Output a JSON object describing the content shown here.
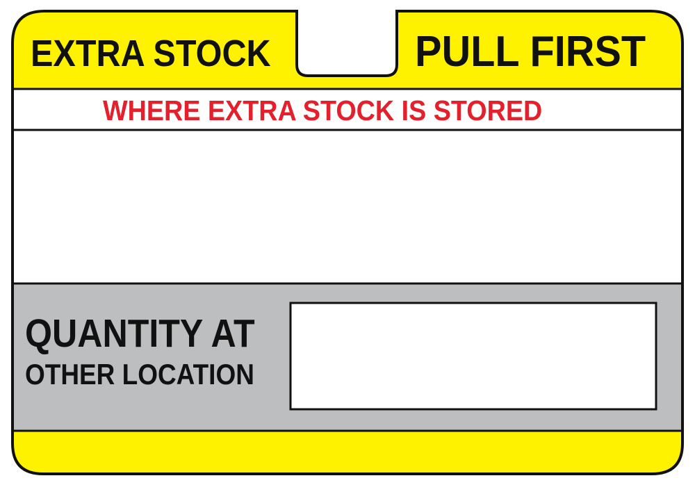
{
  "label": {
    "header_left": "EXTRA STOCK",
    "header_right": "PULL FIRST",
    "subtitle": "WHERE EXTRA STOCK IS STORED",
    "quantity_line1": "QUANTITY AT",
    "quantity_line2": "OTHER LOCATION"
  },
  "colors": {
    "yellow": "#fff200",
    "red_text": "#e3202c",
    "gray_band": "#bcbec0",
    "outline": "#111111",
    "white": "#ffffff"
  }
}
